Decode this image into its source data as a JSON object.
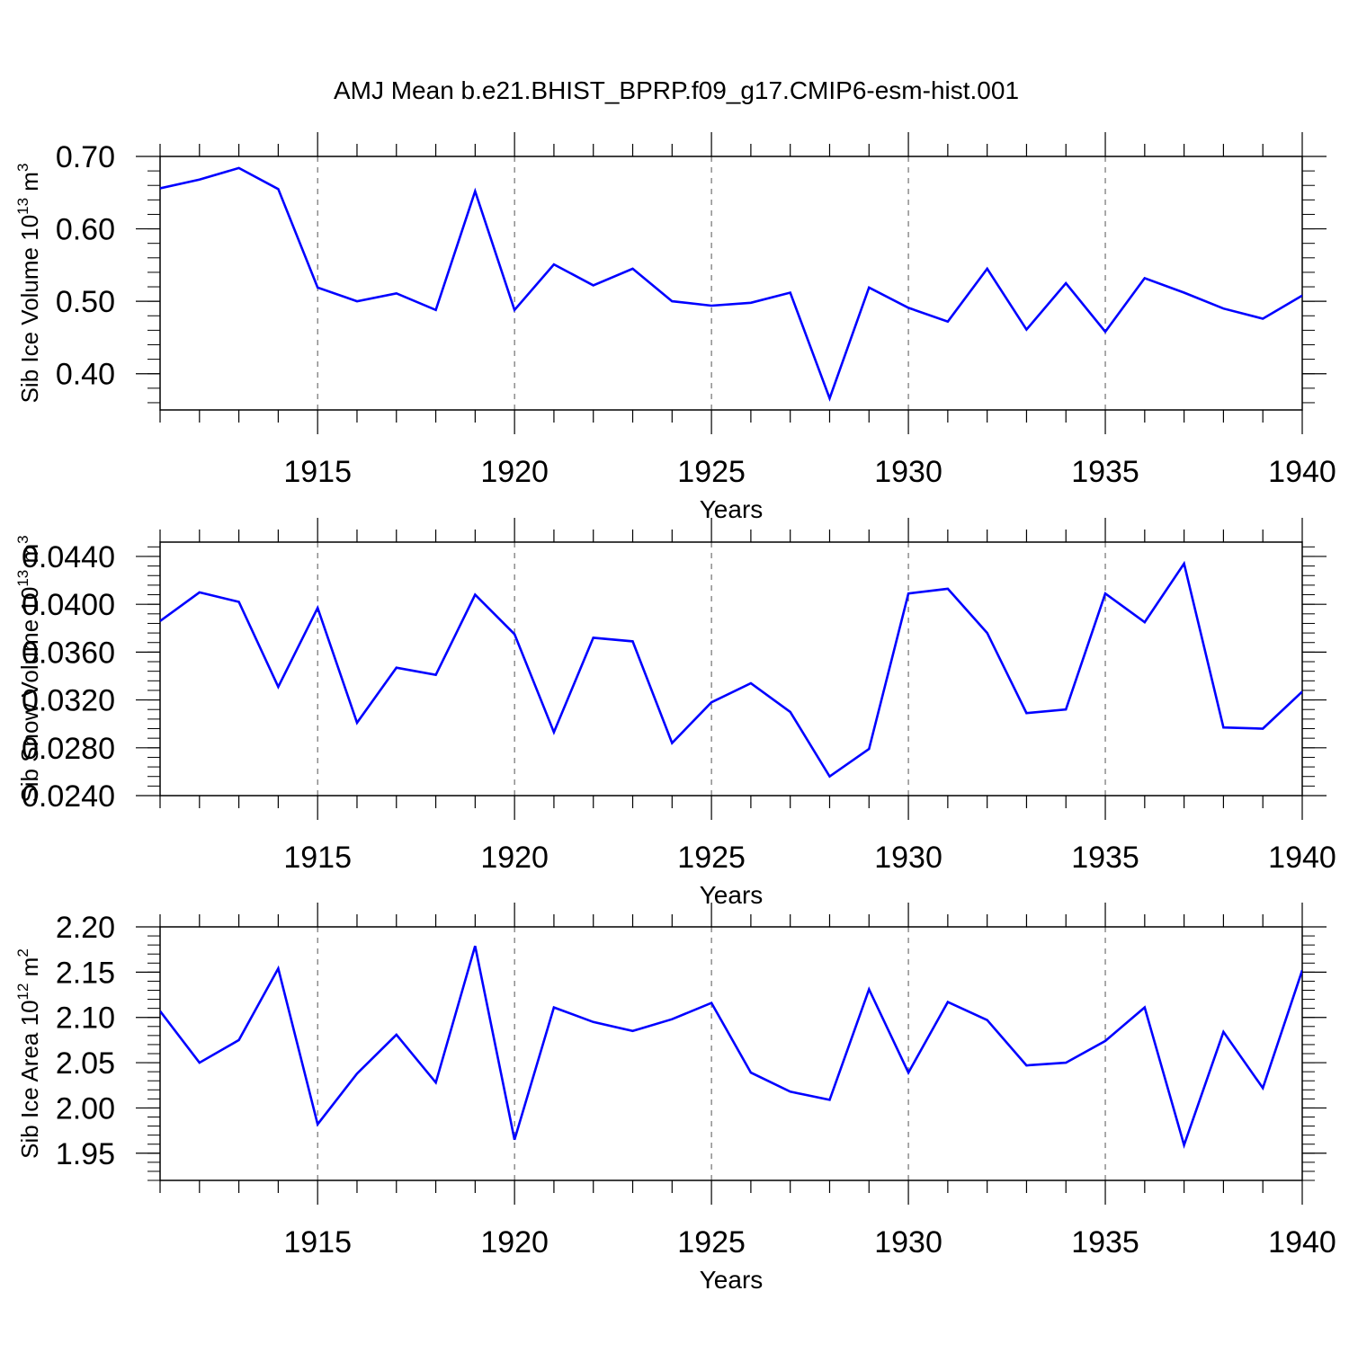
{
  "title": "AMJ Mean b.e21.BHIST_BPRP.f09_g17.CMIP6-esm-hist.001",
  "colors": {
    "line": "#0000ff",
    "axis": "#000000",
    "grid": "#555555"
  },
  "chart_data": [
    {
      "type": "line",
      "ylabel_main": "Sib Ice Volume 10",
      "ylabel_exp": "13",
      "ylabel_unit": " m",
      "ylabel_unit_exp": "3",
      "xlabel": "Years",
      "xlim": [
        1911,
        1940
      ],
      "ylim": [
        0.35,
        0.7
      ],
      "yticks": [
        0.4,
        0.5,
        0.6,
        0.7
      ],
      "ytick_labels": [
        "0.40",
        "0.50",
        "0.60",
        "0.70"
      ],
      "xticks": [
        1915,
        1920,
        1925,
        1930,
        1935,
        1940
      ],
      "xtick_labels": [
        "1915",
        "1920",
        "1925",
        "1930",
        "1935",
        "1940"
      ],
      "grid": "dashed vertical at 1915,1920,1925,1930,1935",
      "x": [
        1911,
        1912,
        1913,
        1914,
        1915,
        1916,
        1917,
        1918,
        1919,
        1920,
        1921,
        1922,
        1923,
        1924,
        1925,
        1926,
        1927,
        1928,
        1929,
        1930,
        1931,
        1932,
        1933,
        1934,
        1935,
        1936,
        1937,
        1938,
        1939,
        1940
      ],
      "values": [
        0.656,
        0.668,
        0.684,
        0.655,
        0.519,
        0.5,
        0.511,
        0.488,
        0.652,
        0.488,
        0.551,
        0.522,
        0.545,
        0.5,
        0.494,
        0.498,
        0.512,
        0.366,
        0.519,
        0.491,
        0.472,
        0.545,
        0.461,
        0.525,
        0.458,
        0.532,
        0.512,
        0.49,
        0.476,
        0.508
      ]
    },
    {
      "type": "line",
      "ylabel_main": "Sib Snow Volume 10",
      "ylabel_exp": "13",
      "ylabel_unit": " m",
      "ylabel_unit_exp": "3",
      "xlabel": "Years",
      "xlim": [
        1911,
        1940
      ],
      "ylim": [
        0.024,
        0.0452
      ],
      "yticks": [
        0.024,
        0.028,
        0.032,
        0.036,
        0.04,
        0.044
      ],
      "ytick_labels": [
        "0.0240",
        "0.0280",
        "0.0320",
        "0.0360",
        "0.0400",
        "0.0440"
      ],
      "xticks": [
        1915,
        1920,
        1925,
        1930,
        1935,
        1940
      ],
      "xtick_labels": [
        "1915",
        "1920",
        "1925",
        "1930",
        "1935",
        "1940"
      ],
      "grid": "dashed vertical at 1915,1920,1925,1930,1935",
      "x": [
        1911,
        1912,
        1913,
        1914,
        1915,
        1916,
        1917,
        1918,
        1919,
        1920,
        1921,
        1922,
        1923,
        1924,
        1925,
        1926,
        1927,
        1928,
        1929,
        1930,
        1931,
        1932,
        1933,
        1934,
        1935,
        1936,
        1937,
        1938,
        1939,
        1940
      ],
      "values": [
        0.0386,
        0.041,
        0.0402,
        0.0331,
        0.0397,
        0.0301,
        0.0347,
        0.0341,
        0.0408,
        0.0375,
        0.0293,
        0.0372,
        0.0369,
        0.0284,
        0.0318,
        0.0334,
        0.031,
        0.0256,
        0.0279,
        0.0409,
        0.0413,
        0.0376,
        0.0309,
        0.0312,
        0.0409,
        0.0385,
        0.0434,
        0.0297,
        0.0296,
        0.0327
      ]
    },
    {
      "type": "line",
      "ylabel_main": "Sib Ice Area 10",
      "ylabel_exp": "12",
      "ylabel_unit": " m",
      "ylabel_unit_exp": "2",
      "xlabel": "Years",
      "xlim": [
        1911,
        1940
      ],
      "ylim": [
        1.92,
        2.2
      ],
      "yticks": [
        1.95,
        2.0,
        2.05,
        2.1,
        2.15,
        2.2
      ],
      "ytick_labels": [
        "1.95",
        "2.00",
        "2.05",
        "2.10",
        "2.15",
        "2.20"
      ],
      "xticks": [
        1915,
        1920,
        1925,
        1930,
        1935,
        1940
      ],
      "xtick_labels": [
        "1915",
        "1920",
        "1925",
        "1930",
        "1935",
        "1940"
      ],
      "grid": "dashed vertical at 1915,1920,1925,1930,1935",
      "x": [
        1911,
        1912,
        1913,
        1914,
        1915,
        1916,
        1917,
        1918,
        1919,
        1920,
        1921,
        1922,
        1923,
        1924,
        1925,
        1926,
        1927,
        1928,
        1929,
        1930,
        1931,
        1932,
        1933,
        1934,
        1935,
        1936,
        1937,
        1938,
        1939,
        1940
      ],
      "values": [
        2.107,
        2.05,
        2.075,
        2.154,
        1.982,
        2.038,
        2.081,
        2.028,
        2.179,
        1.965,
        2.111,
        2.095,
        2.085,
        2.098,
        2.116,
        2.039,
        2.018,
        2.009,
        2.131,
        2.039,
        2.117,
        2.097,
        2.047,
        2.05,
        2.074,
        2.111,
        1.959,
        2.084,
        2.022,
        2.152
      ]
    }
  ]
}
